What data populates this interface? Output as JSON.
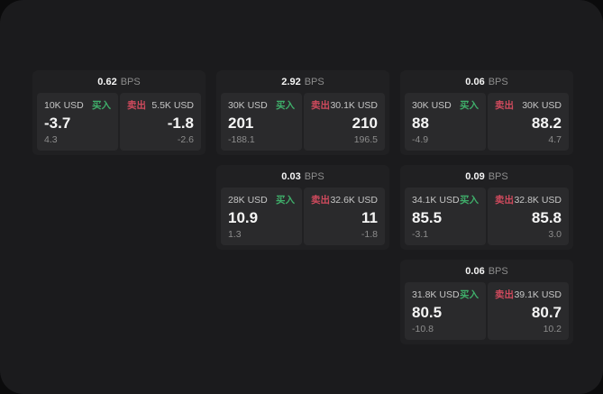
{
  "labels": {
    "unit": "BPS",
    "buy": "买入",
    "sell": "卖出"
  },
  "colors": {
    "buy_accent": "#3fae6a",
    "sell_accent": "#cf4a5d",
    "panel_background": "#1b1b1d",
    "card_background": "#202022",
    "tile_background": "#2a2a2c"
  },
  "cards": [
    {
      "row": 1,
      "col": 1,
      "bps": "0.62",
      "buy": {
        "size": "10K USD",
        "value": "-3.7",
        "delta": "4.3"
      },
      "sell": {
        "size": "5.5K USD",
        "value": "-1.8",
        "delta": "-2.6"
      }
    },
    {
      "row": 1,
      "col": 2,
      "bps": "2.92",
      "buy": {
        "size": "30K USD",
        "value": "201",
        "delta": "-188.1"
      },
      "sell": {
        "size": "30.1K USD",
        "value": "210",
        "delta": "196.5"
      }
    },
    {
      "row": 1,
      "col": 3,
      "bps": "0.06",
      "buy": {
        "size": "30K USD",
        "value": "88",
        "delta": "-4.9"
      },
      "sell": {
        "size": "30K USD",
        "value": "88.2",
        "delta": "4.7"
      }
    },
    {
      "row": 2,
      "col": 2,
      "bps": "0.03",
      "buy": {
        "size": "28K USD",
        "value": "10.9",
        "delta": "1.3"
      },
      "sell": {
        "size": "32.6K USD",
        "value": "11",
        "delta": "-1.8"
      }
    },
    {
      "row": 2,
      "col": 3,
      "bps": "0.09",
      "buy": {
        "size": "34.1K USD",
        "value": "85.5",
        "delta": "-3.1"
      },
      "sell": {
        "size": "32.8K USD",
        "value": "85.8",
        "delta": "3.0"
      }
    },
    {
      "row": 3,
      "col": 3,
      "bps": "0.06",
      "buy": {
        "size": "31.8K USD",
        "value": "80.5",
        "delta": "-10.8"
      },
      "sell": {
        "size": "39.1K USD",
        "value": "80.7",
        "delta": "10.2"
      }
    }
  ]
}
